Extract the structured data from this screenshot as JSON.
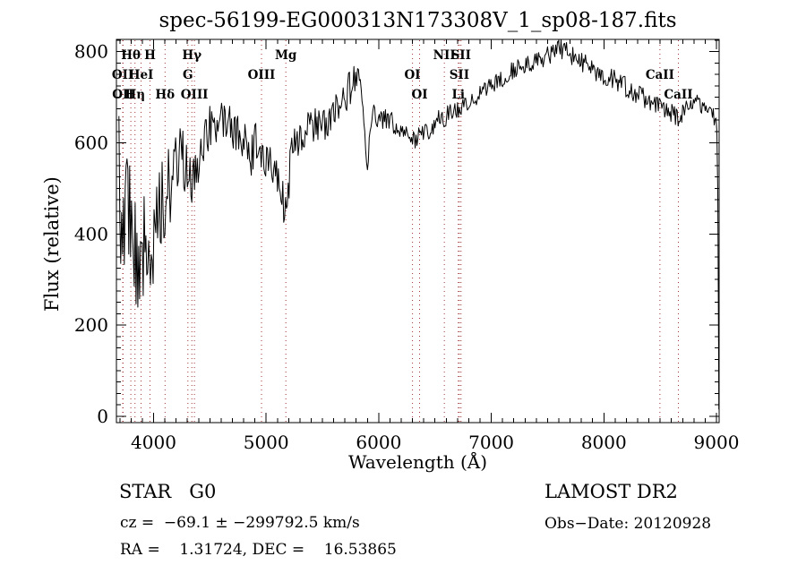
{
  "colors": {
    "background": "#ffffff",
    "spectrum_line": "#000000",
    "reference_line": "#a03333",
    "text": "#000000"
  },
  "chart_data": {
    "type": "line",
    "title": "spec-56199-EG000313N173308V_1_sp08-187.fits",
    "xlabel": "Wavelength (Å)",
    "ylabel": "Flux (relative)",
    "xlim": [
      3670,
      9024
    ],
    "ylim": [
      -14,
      827
    ],
    "x_ticks": [
      4000,
      5000,
      6000,
      7000,
      8000,
      9000
    ],
    "y_ticks": [
      0,
      200,
      400,
      600,
      800
    ],
    "x_minor_step": 100,
    "y_minor_step": 25,
    "grid": false,
    "legend": "none",
    "spectral_lines": [
      {
        "label": "OII",
        "wavelength": 3726,
        "row": 2
      },
      {
        "label": "OII",
        "wavelength": 3729,
        "row": 3
      },
      {
        "label": "Hθ",
        "wavelength": 3798,
        "row": 1
      },
      {
        "label": "Hη",
        "wavelength": 3835,
        "row": 3
      },
      {
        "label": "HeI",
        "wavelength": 3889,
        "row": 2
      },
      {
        "label": "H",
        "wavelength": 3968,
        "row": 1
      },
      {
        "label": "Hδ",
        "wavelength": 4102,
        "row": 3
      },
      {
        "label": "G",
        "wavelength": 4305,
        "row": 2
      },
      {
        "label": "Hγ",
        "wavelength": 4340,
        "row": 1
      },
      {
        "label": "OIII",
        "wavelength": 4363,
        "row": 3
      },
      {
        "label": "OIII",
        "wavelength": 4959,
        "row": 2
      },
      {
        "label": "Mg",
        "wavelength": 5175,
        "row": 1
      },
      {
        "label": "OI",
        "wavelength": 6300,
        "row": 2
      },
      {
        "label": "OI",
        "wavelength": 6363,
        "row": 3
      },
      {
        "label": "NII",
        "wavelength": 6583,
        "row": 1
      },
      {
        "label": "Li",
        "wavelength": 6707,
        "row": 3
      },
      {
        "label": "SII",
        "wavelength": 6716,
        "row": 2
      },
      {
        "label": "SII",
        "wavelength": 6731,
        "row": 1
      }
    ],
    "spectral_lines_right": [
      {
        "label": "CaII",
        "wavelength": 8498,
        "row": 2
      },
      {
        "label": "CaII",
        "wavelength": 8662,
        "row": 3
      }
    ],
    "spectrum_envelope": [
      [
        3692,
        520
      ],
      [
        3700,
        480
      ],
      [
        3725,
        455
      ],
      [
        3745,
        500
      ],
      [
        3765,
        465
      ],
      [
        3785,
        430
      ],
      [
        3805,
        445
      ],
      [
        3825,
        395
      ],
      [
        3845,
        290
      ],
      [
        3860,
        250
      ],
      [
        3875,
        330
      ],
      [
        3890,
        285
      ],
      [
        3910,
        365
      ],
      [
        3930,
        385
      ],
      [
        3955,
        305
      ],
      [
        3975,
        255
      ],
      [
        3995,
        330
      ],
      [
        4015,
        425
      ],
      [
        4045,
        455
      ],
      [
        4075,
        470
      ],
      [
        4105,
        455
      ],
      [
        4135,
        505
      ],
      [
        4170,
        530
      ],
      [
        4210,
        550
      ],
      [
        4255,
        570
      ],
      [
        4295,
        550
      ],
      [
        4325,
        560
      ],
      [
        4350,
        525
      ],
      [
        4385,
        570
      ],
      [
        4425,
        600
      ],
      [
        4475,
        620
      ],
      [
        4525,
        640
      ],
      [
        4575,
        650
      ],
      [
        4625,
        645
      ],
      [
        4675,
        632
      ],
      [
        4725,
        620
      ],
      [
        4775,
        612
      ],
      [
        4825,
        602
      ],
      [
        4862,
        565
      ],
      [
        4900,
        600
      ],
      [
        4950,
        588
      ],
      [
        5000,
        565
      ],
      [
        5050,
        540
      ],
      [
        5100,
        512
      ],
      [
        5140,
        482
      ],
      [
        5172,
        445
      ],
      [
        5190,
        470
      ],
      [
        5215,
        560
      ],
      [
        5245,
        600
      ],
      [
        5285,
        615
      ],
      [
        5340,
        622
      ],
      [
        5420,
        632
      ],
      [
        5500,
        642
      ],
      [
        5580,
        658
      ],
      [
        5660,
        680
      ],
      [
        5740,
        718
      ],
      [
        5800,
        748
      ],
      [
        5830,
        742
      ],
      [
        5862,
        700
      ],
      [
        5888,
        555
      ],
      [
        5898,
        530
      ],
      [
        5915,
        625
      ],
      [
        5945,
        655
      ],
      [
        5985,
        660
      ],
      [
        6040,
        655
      ],
      [
        6100,
        646
      ],
      [
        6160,
        635
      ],
      [
        6220,
        622
      ],
      [
        6290,
        610
      ],
      [
        6330,
        608
      ],
      [
        6380,
        618
      ],
      [
        6440,
        630
      ],
      [
        6500,
        645
      ],
      [
        6560,
        655
      ],
      [
        6620,
        663
      ],
      [
        6690,
        672
      ],
      [
        6760,
        683
      ],
      [
        6830,
        695
      ],
      [
        6900,
        708
      ],
      [
        6970,
        720
      ],
      [
        7040,
        732
      ],
      [
        7110,
        745
      ],
      [
        7180,
        756
      ],
      [
        7250,
        764
      ],
      [
        7320,
        772
      ],
      [
        7390,
        780
      ],
      [
        7460,
        788
      ],
      [
        7530,
        797
      ],
      [
        7585,
        812
      ],
      [
        7625,
        806
      ],
      [
        7670,
        798
      ],
      [
        7720,
        790
      ],
      [
        7780,
        782
      ],
      [
        7840,
        772
      ],
      [
        7900,
        762
      ],
      [
        7960,
        754
      ],
      [
        8020,
        746
      ],
      [
        8090,
        737
      ],
      [
        8160,
        727
      ],
      [
        8230,
        715
      ],
      [
        8300,
        704
      ],
      [
        8370,
        696
      ],
      [
        8440,
        688
      ],
      [
        8500,
        678
      ],
      [
        8540,
        665
      ],
      [
        8580,
        663
      ],
      [
        8620,
        668
      ],
      [
        8660,
        658
      ],
      [
        8705,
        672
      ],
      [
        8755,
        682
      ],
      [
        8805,
        688
      ],
      [
        8855,
        684
      ],
      [
        8905,
        674
      ],
      [
        8945,
        667
      ],
      [
        8975,
        658
      ],
      [
        9000,
        645
      ],
      [
        9008,
        580
      ],
      [
        9014,
        420
      ],
      [
        9019,
        180
      ],
      [
        9022,
        15
      ]
    ],
    "noise_segments": [
      [
        3692,
        3800,
        165
      ],
      [
        3800,
        3990,
        135
      ],
      [
        3990,
        4150,
        95
      ],
      [
        4150,
        4400,
        70
      ],
      [
        4400,
        4700,
        50
      ],
      [
        4700,
        5300,
        45
      ],
      [
        5300,
        5750,
        42
      ],
      [
        5750,
        6000,
        30
      ],
      [
        6000,
        6600,
        24
      ],
      [
        6600,
        7200,
        20
      ],
      [
        7200,
        8000,
        22
      ],
      [
        8000,
        8700,
        24
      ],
      [
        8700,
        9000,
        20
      ],
      [
        9000,
        9024,
        25
      ]
    ],
    "noise_seed": 20120928,
    "sample_step_angstrom": 8
  },
  "footer": {
    "class_line": "STAR   G0",
    "cz_line": "cz =  −69.1 ± −299792.5 km/s",
    "radec_line": "RA =    1.31724, DEC =    16.53865",
    "survey": "LAMOST DR2",
    "obs_date": "Obs−Date: 20120928"
  }
}
